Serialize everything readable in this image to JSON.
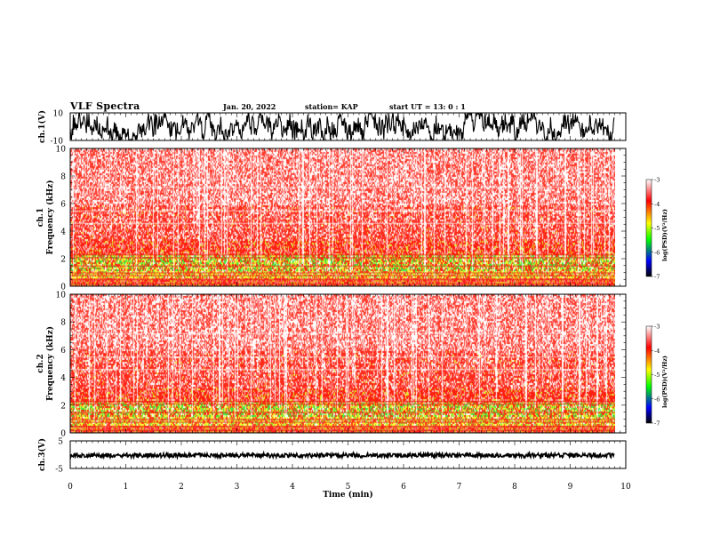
{
  "header": {
    "title": "VLF Spectra",
    "date": "Jan. 20, 2022",
    "station": "station= KAP",
    "start": "start  UT  =   13: 0   : 1"
  },
  "chart_data": [
    {
      "type": "line",
      "panel": "ch1-waveform",
      "ylabel": "ch.1(V)",
      "ylim": [
        -10,
        10
      ],
      "yticks": [
        "10",
        "-10"
      ],
      "xlim": [
        0,
        10
      ],
      "color": "#000000"
    },
    {
      "type": "heatmap",
      "panel": "ch1-spectrogram",
      "ylabel": "ch.1\nFrequency (kHz)",
      "ylabel_line1": "ch.1",
      "ylabel_line2": "Frequency (kHz)",
      "ylim": [
        0,
        10
      ],
      "yticks": [
        "0",
        "2",
        "4",
        "6",
        "8",
        "10"
      ],
      "xlim": [
        0,
        10
      ],
      "data_end_min": 9.8,
      "colorbar": {
        "label": "log(PSD)(V²/Hz)",
        "range": [
          -7,
          -3
        ],
        "ticks": [
          "-3",
          "-4",
          "-5",
          "-6",
          "-7"
        ],
        "colors": [
          "#ffffff",
          "#ff0000",
          "#ffff00",
          "#00ff00",
          "#0000ff",
          "#000000"
        ]
      }
    },
    {
      "type": "heatmap",
      "panel": "ch2-spectrogram",
      "ylabel": "ch.2\nFrequency (kHz)",
      "ylabel_line1": "ch.2",
      "ylabel_line2": "Frequency (kHz)",
      "ylim": [
        0,
        10
      ],
      "yticks": [
        "0",
        "2",
        "4",
        "6",
        "8",
        "10"
      ],
      "xlim": [
        0,
        10
      ],
      "data_end_min": 9.8,
      "colorbar": {
        "label": "log(PSD)(V²/Hz)",
        "range": [
          -7,
          -3
        ],
        "ticks": [
          "-3",
          "-4",
          "-5",
          "-6",
          "-7"
        ],
        "colors": [
          "#ffffff",
          "#ff0000",
          "#ffff00",
          "#00ff00",
          "#0000ff",
          "#000000"
        ]
      }
    },
    {
      "type": "line",
      "panel": "ch3-waveform",
      "ylabel": "ch.3(V)",
      "ylim": [
        -5,
        5
      ],
      "yticks": [
        "5",
        "-5"
      ],
      "xlim": [
        0,
        10
      ],
      "xlabel": "Time (min)",
      "xticks": [
        "0",
        "1",
        "2",
        "3",
        "4",
        "5",
        "6",
        "7",
        "8",
        "9",
        "10"
      ],
      "color": "#000000"
    }
  ]
}
